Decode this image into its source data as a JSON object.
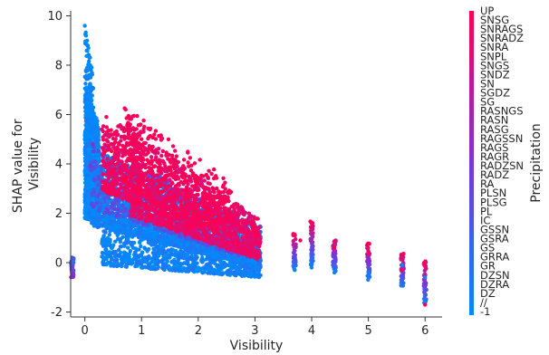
{
  "chart_data": {
    "type": "scatter",
    "title": "",
    "xlabel": "Visibility",
    "ylabel": [
      "SHAP value for",
      "Visibility"
    ],
    "xlim": [
      -0.25,
      6.3
    ],
    "ylim": [
      -2.2,
      10.2
    ],
    "x_ticks": [
      0,
      1,
      2,
      3,
      4,
      5,
      6
    ],
    "y_ticks": [
      -2,
      0,
      2,
      4,
      6,
      8,
      10
    ],
    "grid": false,
    "colorbar": {
      "label": "Precipitation",
      "colors": {
        "high": "#ff0052",
        "mid": "#7b35d8",
        "low": "#008bfb"
      },
      "categories_top_to_bottom": [
        "UP",
        "SNSG",
        "SNRAGS",
        "SNRADZ",
        "SNRA",
        "SNPL",
        "SNGS",
        "SNDZ",
        "SN",
        "SGDZ",
        "SG",
        "RASNGS",
        "RASN",
        "RASG",
        "RAGSSN",
        "RAGS",
        "RAGR",
        "RADZSN",
        "RADZ",
        "RA",
        "PLSN",
        "PLSG",
        "PL",
        "IC",
        "GSSN",
        "GSRA",
        "GS",
        "GRRA",
        "GR",
        "DZSN",
        "DZRA",
        "DZ",
        "//",
        "-1"
      ]
    },
    "series": [
      {
        "color_scale": "precipitation",
        "points": [
          [
            -0.22,
            0.1,
            0.25
          ],
          [
            -0.22,
            -0.3,
            0.3
          ],
          [
            -0.2,
            -0.5,
            0.5
          ],
          [
            -0.21,
            0.0,
            0.15
          ],
          [
            0.0,
            9.6,
            0.0
          ],
          [
            0.02,
            9.2,
            0.0
          ],
          [
            0.05,
            8.8,
            0.05
          ],
          [
            0.08,
            8.3,
            0.0
          ],
          [
            0.04,
            7.9,
            0.0
          ],
          [
            0.1,
            7.5,
            0.05
          ],
          [
            0.06,
            7.0,
            0.0
          ],
          [
            0.02,
            6.6,
            0.1
          ],
          [
            0.03,
            6.2,
            0.0
          ],
          [
            0.08,
            5.8,
            0.05
          ],
          [
            0.12,
            5.4,
            0.1
          ],
          [
            0.0,
            5.0,
            0.0
          ],
          [
            0.05,
            4.6,
            0.0
          ],
          [
            0.1,
            4.2,
            0.05
          ],
          [
            0.02,
            3.8,
            0.0
          ],
          [
            0.06,
            3.4,
            0.0
          ],
          [
            0.04,
            3.0,
            0.0
          ],
          [
            0.08,
            2.6,
            0.05
          ],
          [
            0.02,
            2.2,
            0.0
          ],
          [
            0.0,
            2.0,
            0.0
          ],
          [
            0.1,
            3.9,
            0.5
          ],
          [
            0.14,
            4.8,
            0.6
          ],
          [
            0.3,
            5.4,
            0.9
          ],
          [
            0.38,
            5.9,
            1.0
          ],
          [
            0.46,
            5.2,
            0.95
          ],
          [
            0.72,
            6.2,
            1.0
          ],
          [
            0.8,
            5.6,
            1.0
          ],
          [
            1.0,
            5.0,
            1.0
          ],
          [
            1.2,
            4.5,
            0.95
          ],
          [
            1.5,
            3.8,
            1.0
          ],
          [
            1.8,
            3.3,
            1.0
          ],
          [
            2.2,
            2.7,
            1.0
          ],
          [
            2.6,
            1.9,
            1.0
          ],
          [
            3.0,
            1.3,
            1.0
          ],
          [
            3.8,
            0.9,
            1.0
          ],
          [
            4.0,
            1.6,
            1.0
          ],
          [
            4.4,
            0.6,
            1.0
          ],
          [
            5.0,
            0.4,
            1.0
          ],
          [
            5.6,
            -0.3,
            1.0
          ],
          [
            6.0,
            -1.7,
            1.0
          ],
          [
            0.3,
            2.5,
            0.1
          ],
          [
            0.5,
            1.9,
            0.1
          ],
          [
            0.7,
            1.5,
            0.15
          ],
          [
            1.0,
            1.2,
            0.1
          ],
          [
            1.3,
            0.9,
            0.1
          ],
          [
            1.6,
            0.7,
            0.15
          ],
          [
            2.0,
            0.5,
            0.1
          ],
          [
            2.4,
            0.3,
            0.1
          ],
          [
            2.8,
            0.2,
            0.1
          ],
          [
            3.1,
            0.1,
            0.1
          ],
          [
            0.6,
            -0.1,
            0.05
          ],
          [
            1.0,
            -0.2,
            0.0
          ],
          [
            1.5,
            -0.3,
            0.05
          ],
          [
            2.0,
            -0.2,
            0.0
          ],
          [
            2.5,
            -0.1,
            0.05
          ],
          [
            3.0,
            0.0,
            0.0
          ],
          [
            3.7,
            -0.3,
            0.05
          ],
          [
            4.0,
            -0.2,
            0.05
          ],
          [
            4.4,
            -0.4,
            0.05
          ],
          [
            5.0,
            -0.4,
            0.05
          ],
          [
            5.6,
            -0.1,
            0.05
          ],
          [
            6.0,
            -0.6,
            0.05
          ]
        ]
      }
    ],
    "bands": [
      {
        "x": [
          0.0,
          0.25
        ],
        "y_low": [
          1.8,
          1.6
        ],
        "y_high": [
          7.0,
          5.6
        ],
        "c": 0.02,
        "n": 1200
      },
      {
        "x": [
          0.0,
          0.15
        ],
        "y_low": [
          6.5,
          5.5
        ],
        "y_high": [
          9.7,
          7.5
        ],
        "c": 0.0,
        "n": 120
      },
      {
        "x": [
          0.12,
          3.1
        ],
        "y_low": [
          1.5,
          -0.2
        ],
        "y_high": [
          4.7,
          1.4
        ],
        "c": 0.06,
        "n": 2200
      },
      {
        "x": [
          0.3,
          3.1
        ],
        "y_low": [
          -0.1,
          -0.6
        ],
        "y_high": [
          1.8,
          0.4
        ],
        "c": 0.05,
        "n": 900
      },
      {
        "x": [
          0.1,
          3.1
        ],
        "y_low": [
          2.2,
          0.0
        ],
        "y_high": [
          5.0,
          1.6
        ],
        "c": 0.35,
        "n": 500
      },
      {
        "x": [
          0.3,
          1.0
        ],
        "y_low": [
          2.9,
          2.3
        ],
        "y_high": [
          5.6,
          5.6
        ],
        "c": 0.95,
        "n": 400
      },
      {
        "x": [
          0.8,
          3.1
        ],
        "y_low": [
          1.9,
          0.1
        ],
        "y_high": [
          5.5,
          1.7
        ],
        "c": 0.92,
        "n": 1300
      },
      {
        "x": [
          0.7,
          2.6
        ],
        "y_low": [
          2.5,
          1.0
        ],
        "y_high": [
          6.3,
          3.3
        ],
        "c": 1.0,
        "n": 400
      }
    ],
    "stacks": [
      {
        "x": 3.7,
        "y_low": -0.3,
        "y_high": 1.2,
        "c_top": 1.0,
        "c_bottom": 0.05
      },
      {
        "x": 4.0,
        "y_low": -0.1,
        "y_high": 1.7,
        "c_top": 1.0,
        "c_bottom": 0.05
      },
      {
        "x": 4.4,
        "y_low": -0.4,
        "y_high": 0.9,
        "c_top": 0.9,
        "c_bottom": 0.05
      },
      {
        "x": 5.0,
        "y_low": -0.7,
        "y_high": 0.8,
        "c_top": 1.0,
        "c_bottom": 0.05
      },
      {
        "x": 5.6,
        "y_low": -1.0,
        "y_high": 0.4,
        "c_top": 1.0,
        "c_bottom": 0.05
      },
      {
        "x": 6.0,
        "y_low": -1.7,
        "y_high": 0.1,
        "c_top": 1.0,
        "c_bottom": 0.05
      },
      {
        "x": -0.22,
        "y_low": -0.6,
        "y_high": 0.25,
        "c_top": 0.3,
        "c_bottom": 0.6
      }
    ]
  }
}
